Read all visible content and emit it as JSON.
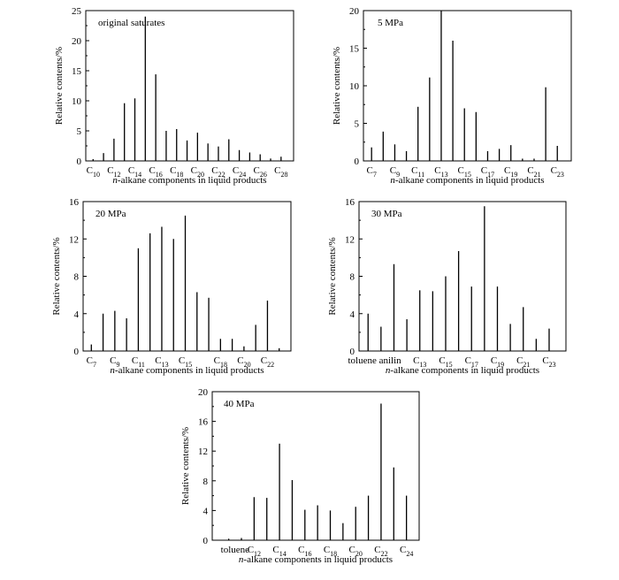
{
  "figure": {
    "charts": [
      {
        "type": "bar",
        "title": "original saturates",
        "xlabel_italic": "n",
        "xlabel_rest": "-alkane components in liquid products",
        "ylabel": "Relative contents/%",
        "ylim": [
          0,
          25
        ],
        "yticks": [
          0,
          5,
          10,
          15,
          20,
          25
        ],
        "x": [
          10,
          11,
          12,
          13,
          14,
          15,
          16,
          17,
          18,
          19,
          20,
          21,
          22,
          23,
          24,
          25,
          26,
          27,
          28
        ],
        "values": [
          0.3,
          1.3,
          3.7,
          9.6,
          10.4,
          24.0,
          14.4,
          5.0,
          5.3,
          3.4,
          4.7,
          2.9,
          2.4,
          3.6,
          1.8,
          1.4,
          1.1,
          0.4,
          0.7
        ],
        "tick_labels": [
          {
            "x": 10,
            "base": "C",
            "sub": "10"
          },
          {
            "x": 12,
            "base": "C",
            "sub": "12"
          },
          {
            "x": 14,
            "base": "C",
            "sub": "14"
          },
          {
            "x": 16,
            "base": "C",
            "sub": "16"
          },
          {
            "x": 18,
            "base": "C",
            "sub": "18"
          },
          {
            "x": 20,
            "base": "C",
            "sub": "20"
          },
          {
            "x": 22,
            "base": "C",
            "sub": "22"
          },
          {
            "x": 24,
            "base": "C",
            "sub": "24"
          },
          {
            "x": 26,
            "base": "C",
            "sub": "26"
          },
          {
            "x": 28,
            "base": "C",
            "sub": "28"
          }
        ]
      },
      {
        "type": "bar",
        "title": "5 MPa",
        "xlabel_italic": "n",
        "xlabel_rest": "-alkane components in liquid products",
        "ylabel": "Relative contents/%",
        "ylim": [
          0,
          20
        ],
        "yticks": [
          0,
          5,
          10,
          15,
          20
        ],
        "x": [
          7,
          8,
          9,
          10,
          11,
          12,
          13,
          14,
          15,
          16,
          17,
          18,
          19,
          20,
          21,
          22,
          23
        ],
        "values": [
          1.8,
          3.9,
          2.2,
          1.3,
          7.2,
          11.1,
          20.0,
          16.0,
          7.0,
          6.5,
          1.3,
          1.6,
          2.1,
          0.3,
          0.3,
          9.8,
          2.0
        ],
        "tick_labels": [
          {
            "x": 7,
            "base": "C",
            "sub": "7"
          },
          {
            "x": 9,
            "base": "C",
            "sub": "9"
          },
          {
            "x": 11,
            "base": "C",
            "sub": "11"
          },
          {
            "x": 13,
            "base": "C",
            "sub": "13"
          },
          {
            "x": 15,
            "base": "C",
            "sub": "15"
          },
          {
            "x": 17,
            "base": "C",
            "sub": "17"
          },
          {
            "x": 19,
            "base": "C",
            "sub": "19"
          },
          {
            "x": 21,
            "base": "C",
            "sub": "21"
          },
          {
            "x": 23,
            "base": "C",
            "sub": "23"
          }
        ]
      },
      {
        "type": "bar",
        "title": "20 MPa",
        "xlabel_italic": "n",
        "xlabel_rest": "-alkane components in liquid products",
        "ylabel": "Relative contents/%",
        "ylim": [
          0,
          16
        ],
        "yticks": [
          0,
          4,
          8,
          12,
          16
        ],
        "x": [
          7,
          8,
          9,
          10,
          11,
          12,
          13,
          14,
          15,
          16,
          17,
          18,
          19,
          20,
          21,
          22,
          23
        ],
        "values": [
          0.7,
          4.0,
          4.3,
          3.5,
          11.0,
          12.6,
          13.3,
          12.0,
          14.5,
          6.3,
          5.7,
          1.3,
          1.3,
          0.5,
          2.8,
          5.4,
          0.3
        ],
        "tick_labels": [
          {
            "x": 7,
            "base": "C",
            "sub": "7"
          },
          {
            "x": 9,
            "base": "C",
            "sub": "9"
          },
          {
            "x": 11,
            "base": "C",
            "sub": "11"
          },
          {
            "x": 13,
            "base": "C",
            "sub": "13"
          },
          {
            "x": 15,
            "base": "C",
            "sub": "15"
          },
          {
            "x": 18,
            "base": "C",
            "sub": "18"
          },
          {
            "x": 20,
            "base": "C",
            "sub": "20"
          },
          {
            "x": 22,
            "base": "C",
            "sub": "22"
          }
        ]
      },
      {
        "type": "bar",
        "title": "30 MPa",
        "xlabel_italic": "n",
        "xlabel_rest": "-alkane components in liquid products",
        "ylabel": "Relative contents/%",
        "ylim": [
          0,
          16
        ],
        "yticks": [
          0,
          4,
          8,
          12,
          16
        ],
        "x": [
          1,
          2,
          3,
          4,
          5,
          6,
          7,
          8,
          9,
          10,
          11,
          12,
          13,
          14,
          15,
          16
        ],
        "values": [
          4.0,
          2.6,
          9.3,
          3.4,
          6.5,
          6.4,
          8.0,
          10.7,
          6.9,
          15.5,
          6.9,
          2.9,
          4.7,
          1.3,
          2.4,
          0
        ],
        "tick_labels": [
          {
            "x": 1.5,
            "base": "toluene anilin",
            "sub": ""
          },
          {
            "x": 5,
            "base": "C",
            "sub": "13"
          },
          {
            "x": 7,
            "base": "C",
            "sub": "15"
          },
          {
            "x": 9,
            "base": "C",
            "sub": "17"
          },
          {
            "x": 11,
            "base": "C",
            "sub": "19"
          },
          {
            "x": 13,
            "base": "C",
            "sub": "21"
          },
          {
            "x": 15,
            "base": "C",
            "sub": "23"
          }
        ]
      },
      {
        "type": "bar",
        "title": "40 MPa",
        "xlabel_italic": "n",
        "xlabel_rest": "-alkane components in liquid products",
        "ylabel": "Relative contents/%",
        "ylim": [
          0,
          20
        ],
        "yticks": [
          0,
          4,
          8,
          12,
          16,
          20
        ],
        "x": [
          1,
          2,
          3,
          4,
          5,
          6,
          7,
          8,
          9,
          10,
          11,
          12,
          13,
          14
        ],
        "values": [
          0.2,
          0.3,
          5.8,
          5.7,
          13.0,
          8.1,
          4.1,
          4.7,
          4.0,
          2.3,
          4.5,
          6.0,
          18.4,
          9.8
        ],
        "extra_bar": {
          "x": 15,
          "value": 6.0
        },
        "tick_labels": [
          {
            "x": 1.5,
            "base": "toluene",
            "sub": ""
          },
          {
            "x": 3,
            "base": "C",
            "sub": "12"
          },
          {
            "x": 5,
            "base": "C",
            "sub": "14"
          },
          {
            "x": 7,
            "base": "C",
            "sub": "16"
          },
          {
            "x": 9,
            "base": "C",
            "sub": "18"
          },
          {
            "x": 11,
            "base": "C",
            "sub": "20"
          },
          {
            "x": 13,
            "base": "C",
            "sub": "22"
          },
          {
            "x": 15,
            "base": "C",
            "sub": "24"
          }
        ]
      }
    ]
  },
  "chart_data": [
    {
      "type": "bar",
      "title": "original saturates",
      "xlabel": "n-alkane components in liquid products",
      "ylabel": "Relative contents/%",
      "ylim": [
        0,
        25
      ],
      "categories": [
        "C10",
        "C11",
        "C12",
        "C13",
        "C14",
        "C15",
        "C16",
        "C17",
        "C18",
        "C19",
        "C20",
        "C21",
        "C22",
        "C23",
        "C24",
        "C25",
        "C26",
        "C27",
        "C28"
      ],
      "values": [
        0.3,
        1.3,
        3.7,
        9.6,
        10.4,
        24.0,
        14.4,
        5.0,
        5.3,
        3.4,
        4.7,
        2.9,
        2.4,
        3.6,
        1.8,
        1.4,
        1.1,
        0.4,
        0.7
      ]
    },
    {
      "type": "bar",
      "title": "5 MPa",
      "xlabel": "n-alkane components in liquid products",
      "ylabel": "Relative contents/%",
      "ylim": [
        0,
        20
      ],
      "categories": [
        "C7",
        "C8",
        "C9",
        "C10",
        "C11",
        "C12",
        "C13",
        "C14",
        "C15",
        "C16",
        "C17",
        "C18",
        "C19",
        "C20",
        "C21",
        "C22",
        "C23"
      ],
      "values": [
        1.8,
        3.9,
        2.2,
        1.3,
        7.2,
        11.1,
        20.0,
        16.0,
        7.0,
        6.5,
        1.3,
        1.6,
        2.1,
        0.3,
        0.3,
        9.8,
        2.0
      ]
    },
    {
      "type": "bar",
      "title": "20 MPa",
      "xlabel": "n-alkane components in liquid products",
      "ylabel": "Relative contents/%",
      "ylim": [
        0,
        16
      ],
      "categories": [
        "C7",
        "C8",
        "C9",
        "C10",
        "C11",
        "C12",
        "C13",
        "C14",
        "C15",
        "C16",
        "C17",
        "C18",
        "C19",
        "C20",
        "C21",
        "C22",
        "C23"
      ],
      "values": [
        0.7,
        4.0,
        4.3,
        3.5,
        11.0,
        12.6,
        13.3,
        12.0,
        14.5,
        6.3,
        5.7,
        1.3,
        1.3,
        0.5,
        2.8,
        5.4,
        0.3
      ]
    },
    {
      "type": "bar",
      "title": "30 MPa",
      "xlabel": "n-alkane components in liquid products",
      "ylabel": "Relative contents/%",
      "ylim": [
        0,
        16
      ],
      "categories": [
        "toluene",
        "anilin",
        "C11",
        "C12",
        "C13",
        "C14",
        "C15",
        "C16",
        "C17",
        "C18",
        "C19",
        "C20",
        "C21",
        "C22",
        "C23"
      ],
      "values": [
        4.0,
        2.6,
        9.3,
        3.4,
        6.5,
        6.4,
        8.0,
        10.7,
        6.9,
        15.5,
        6.9,
        2.9,
        4.7,
        1.3,
        2.4
      ]
    },
    {
      "type": "bar",
      "title": "40 MPa",
      "xlabel": "n-alkane components in liquid products",
      "ylabel": "Relative contents/%",
      "ylim": [
        0,
        20
      ],
      "categories": [
        "toluene",
        "C11",
        "C12",
        "C13",
        "C14",
        "C15",
        "C16",
        "C17",
        "C18",
        "C19",
        "C20",
        "C21",
        "C22",
        "C23",
        "C24"
      ],
      "values": [
        0.2,
        0.3,
        5.8,
        5.7,
        13.0,
        8.1,
        4.1,
        4.7,
        4.0,
        2.3,
        4.5,
        6.0,
        18.4,
        9.8,
        6.0
      ]
    }
  ]
}
